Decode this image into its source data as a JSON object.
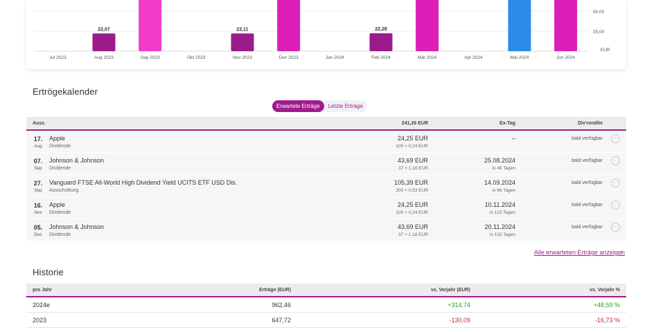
{
  "chart_data": {
    "type": "bar",
    "categories": [
      "Jul 2023",
      "Aug 2023",
      "Sep 2023",
      "Okt 2023",
      "Nov 2023",
      "Dez 2023",
      "Jan 2024",
      "Feb 2024",
      "Mär 2024",
      "Apr 2024",
      "Mai 2024",
      "Jun 2024"
    ],
    "bars": [
      {
        "category": "Aug 2023",
        "value": 22.07,
        "label": "22,07",
        "color": "#9b1b8a",
        "segments": []
      },
      {
        "category": "Sep 2023",
        "value": 75,
        "label": "",
        "color": "#f03cc8",
        "segments": [
          {
            "value": 75,
            "color": "#f03cc8"
          },
          {
            "value": 20,
            "color": "#1f5fb3"
          }
        ]
      },
      {
        "category": "Nov 2023",
        "value": 22.11,
        "label": "22,11",
        "color": "#9b1b8a",
        "segments": []
      },
      {
        "category": "Dez 2023",
        "value": 75,
        "label": "",
        "color": "#dd1fb8",
        "segments": [
          {
            "value": 75,
            "color": "#dd1fb8"
          },
          {
            "value": 20,
            "color": "#1f5fb3"
          }
        ]
      },
      {
        "category": "Feb 2024",
        "value": 22.28,
        "label": "22,28",
        "color": "#9b1b8a",
        "segments": []
      },
      {
        "category": "Mär 2024",
        "value": 75,
        "label": "",
        "color": "#dd1fb8",
        "segments": [
          {
            "value": 75,
            "color": "#dd1fb8"
          },
          {
            "value": 20,
            "color": "#1f5fb3"
          }
        ]
      },
      {
        "category": "Mai 2024",
        "value": 105,
        "label": "",
        "color": "#2b8be8",
        "segments": [
          {
            "value": 105,
            "color": "#2b8be8"
          }
        ]
      },
      {
        "category": "Jun 2024",
        "value": 75,
        "label": "",
        "color": "#dd1fb8",
        "segments": [
          {
            "value": 75,
            "color": "#dd1fb8"
          },
          {
            "value": 20,
            "color": "#1f5fb3"
          }
        ]
      }
    ],
    "yticks": [
      {
        "value": 50,
        "label": "50,00"
      },
      {
        "value": 25,
        "label": "25,00"
      }
    ],
    "yunit": "EUR",
    "ylim": [
      0,
      110
    ],
    "grid": true
  },
  "calendar": {
    "title": "Ertrögekalender",
    "toggle": {
      "expected": "Erwartete Erträge",
      "last": "Letzte Erträge"
    },
    "headers": {
      "col1": "Ausz.",
      "total": "241,26 EUR",
      "exday": "Ex-Tag",
      "yield": "Div'rendite"
    },
    "rows": [
      {
        "day": "17.",
        "month": "Aug",
        "name": "Apple",
        "type": "Dividende",
        "amount": "24,25 EUR",
        "calc": "100 × 0,24 EUR",
        "exdate": "–",
        "exdays": "",
        "yield": "bald verfügbar",
        "more": "···"
      },
      {
        "day": "07.",
        "month": "Sep",
        "name": "Johnson & Johnson",
        "type": "Dividende",
        "amount": "43,69 EUR",
        "calc": "37 × 1,18 EUR",
        "exdate": "25.08.2024",
        "exdays": "in 46 Tagen",
        "yield": "bald verfügbar",
        "more": "···"
      },
      {
        "day": "27.",
        "month": "Sep",
        "name": "Vanguard FTSE All-World High Dividend Yield UCITS ETF USD Dis.",
        "type": "Ausschüttung",
        "amount": "105,39 EUR",
        "calc": "200 × 0,53 EUR",
        "exdate": "14.09.2024",
        "exdays": "in 66 Tagen",
        "yield": "bald verfügbar",
        "more": "···"
      },
      {
        "day": "16.",
        "month": "Nov",
        "name": "Apple",
        "type": "Dividende",
        "amount": "24,25 EUR",
        "calc": "100 × 0,24 EUR",
        "exdate": "10.11.2024",
        "exdays": "in 123 Tagen",
        "yield": "bald verfügbar",
        "more": "···"
      },
      {
        "day": "05.",
        "month": "Dez",
        "name": "Johnson & Johnson",
        "type": "Dividende",
        "amount": "43,69 EUR",
        "calc": "37 × 1,18 EUR",
        "exdate": "20.11.2024",
        "exdays": "in 133 Tagen",
        "yield": "bald verfügbar",
        "more": "···"
      }
    ],
    "show_all": "Alle erwarteten Erträge anzeigen",
    "show_all_chevron": "›"
  },
  "history": {
    "title": "Historie",
    "headers": {
      "year": "pro Jahr",
      "income": "Erträge (EUR)",
      "vs_prev": "vs. Vorjahr (EUR)",
      "vs_prev_pct": "vs. Vorjahr %"
    },
    "rows": [
      {
        "year": "2024e",
        "income": "962,46",
        "vs_prev": "+314,74",
        "vs_prev_pct": "+48,59 %",
        "trend": "pos"
      },
      {
        "year": "2023",
        "income": "647,72",
        "vs_prev": "-130,09",
        "vs_prev_pct": "-16,73 %",
        "trend": "neg"
      }
    ]
  }
}
